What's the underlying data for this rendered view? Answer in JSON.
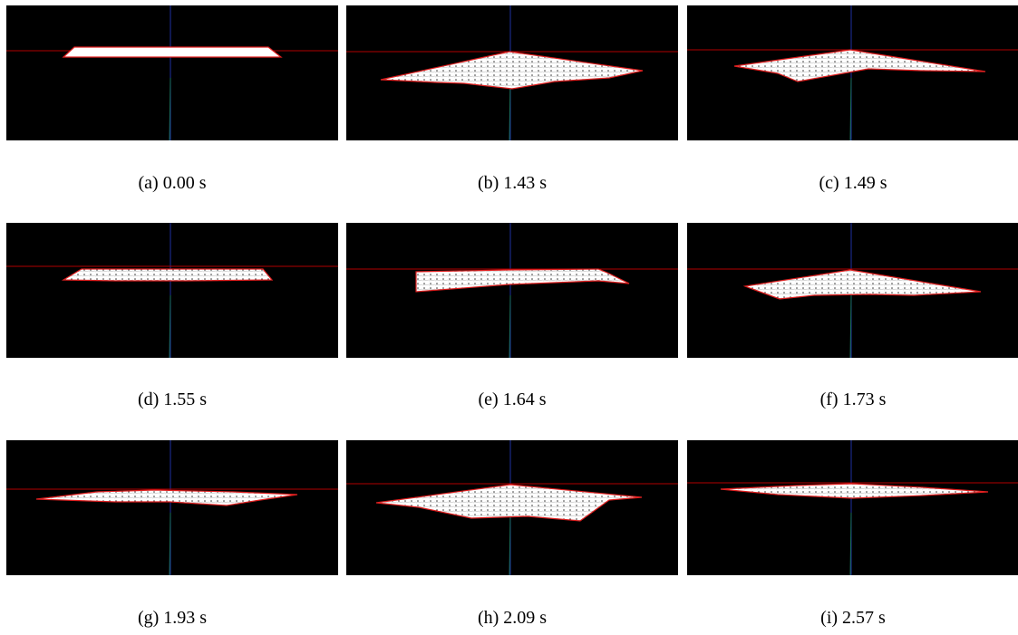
{
  "panels": [
    {
      "caption": "(a) 0.00 s"
    },
    {
      "caption": "(b) 1.43 s"
    },
    {
      "caption": "(c) 1.49 s"
    },
    {
      "caption": "(d) 1.55 s"
    },
    {
      "caption": "(e) 1.64 s"
    },
    {
      "caption": "(f) 1.73 s"
    },
    {
      "caption": "(g) 1.93 s"
    },
    {
      "caption": "(h) 2.09 s"
    },
    {
      "caption": "(i) 2.57 s"
    }
  ]
}
